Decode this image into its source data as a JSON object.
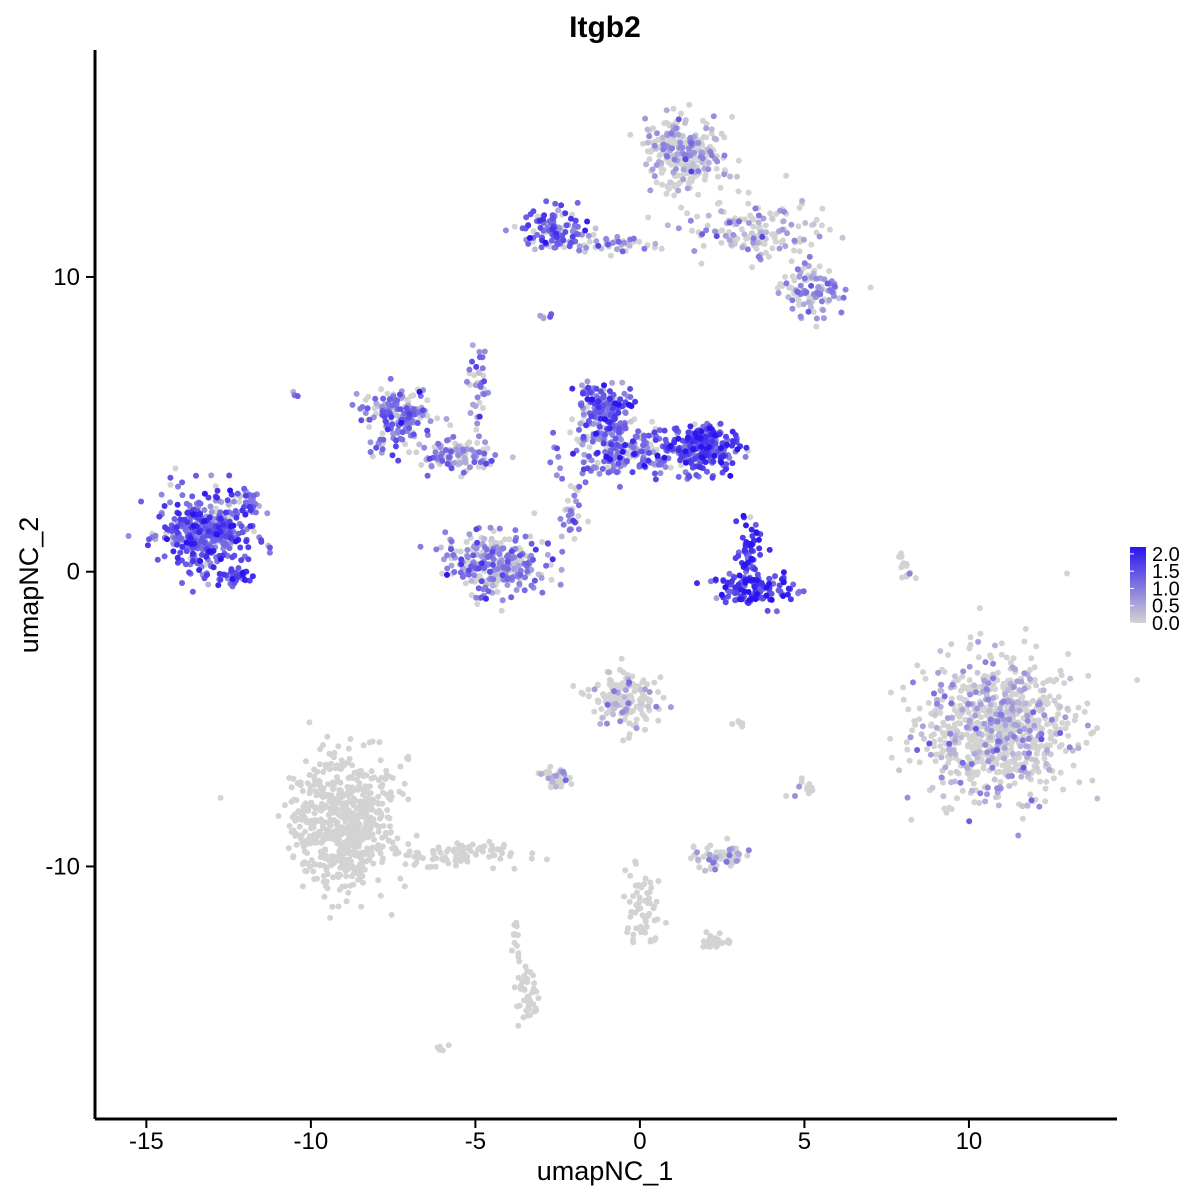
{
  "chart_data": {
    "type": "scatter",
    "title": "Itgb2",
    "xlabel": "umapNC_1",
    "ylabel": "umapNC_2",
    "xlim": [
      -16.5,
      14.5
    ],
    "ylim": [
      -18.5,
      17.7
    ],
    "x_ticks": [
      -15,
      -10,
      -5,
      0,
      5,
      10
    ],
    "y_ticks": [
      -10,
      0,
      10
    ],
    "x_tick_labels": [
      "-15",
      "-10",
      "-5",
      "0",
      "5",
      "10"
    ],
    "y_tick_labels": [
      "-10",
      "0",
      "10"
    ],
    "grid": false,
    "legend": {
      "placement": "right",
      "title": "",
      "values": [
        "2.0",
        "1.5",
        "1.0",
        "0.5",
        "0.0"
      ],
      "range": [
        0,
        2.2
      ],
      "low_color": "#d3d3d3",
      "high_color": "#2a14f0"
    },
    "clusters": [
      {
        "cx": -13.2,
        "cy": 1.3,
        "rx": 1.2,
        "ry": 1.1,
        "n": 420,
        "expr": 1.3
      },
      {
        "cx": -12.3,
        "cy": -0.1,
        "rx": 0.4,
        "ry": 0.2,
        "n": 40,
        "expr": 1.5
      },
      {
        "cx": -11.9,
        "cy": 2.3,
        "rx": 0.4,
        "ry": 0.4,
        "n": 25,
        "expr": 0.9
      },
      {
        "cx": -7.3,
        "cy": 5.2,
        "rx": 0.9,
        "ry": 0.9,
        "n": 180,
        "expr": 1.0
      },
      {
        "cx": -5.5,
        "cy": 3.9,
        "rx": 1.0,
        "ry": 0.4,
        "n": 110,
        "expr": 0.8
      },
      {
        "cx": -4.3,
        "cy": 0.2,
        "rx": 1.3,
        "ry": 0.9,
        "n": 300,
        "expr": 0.8
      },
      {
        "cx": -4.9,
        "cy": 6.3,
        "rx": 0.3,
        "ry": 1.2,
        "n": 35,
        "expr": 0.9
      },
      {
        "cx": -1.1,
        "cy": 5.6,
        "rx": 0.7,
        "ry": 0.7,
        "n": 170,
        "expr": 1.2
      },
      {
        "cx": -0.5,
        "cy": 4.1,
        "rx": 1.4,
        "ry": 0.7,
        "n": 220,
        "expr": 1.1
      },
      {
        "cx": 1.9,
        "cy": 4.2,
        "rx": 0.9,
        "ry": 0.7,
        "n": 230,
        "expr": 1.6
      },
      {
        "cx": -2.1,
        "cy": 2.2,
        "rx": 0.3,
        "ry": 1.0,
        "n": 30,
        "expr": 0.9
      },
      {
        "cx": -2.5,
        "cy": 11.6,
        "rx": 0.9,
        "ry": 0.6,
        "n": 120,
        "expr": 1.2
      },
      {
        "cx": -0.6,
        "cy": 11.1,
        "rx": 1.0,
        "ry": 0.3,
        "n": 40,
        "expr": 0.8
      },
      {
        "cx": 1.3,
        "cy": 14.2,
        "rx": 1.0,
        "ry": 1.0,
        "n": 280,
        "expr": 0.5
      },
      {
        "cx": 3.5,
        "cy": 11.6,
        "rx": 1.8,
        "ry": 0.8,
        "n": 150,
        "expr": 0.5
      },
      {
        "cx": 5.3,
        "cy": 9.5,
        "rx": 0.8,
        "ry": 0.7,
        "n": 110,
        "expr": 0.7
      },
      {
        "cx": 3.3,
        "cy": 0.7,
        "rx": 0.3,
        "ry": 0.8,
        "n": 60,
        "expr": 1.6
      },
      {
        "cx": 3.5,
        "cy": -0.6,
        "rx": 1.0,
        "ry": 0.4,
        "n": 130,
        "expr": 1.6
      },
      {
        "cx": 10.8,
        "cy": -5.2,
        "rx": 1.9,
        "ry": 2.0,
        "n": 850,
        "expr": 0.3
      },
      {
        "cx": 8.1,
        "cy": 0.2,
        "rx": 0.2,
        "ry": 0.4,
        "n": 15,
        "expr": 0.1
      },
      {
        "cx": -9.0,
        "cy": -8.5,
        "rx": 1.3,
        "ry": 1.8,
        "n": 650,
        "expr": 0.0
      },
      {
        "cx": -5.5,
        "cy": -9.6,
        "rx": 1.5,
        "ry": 0.4,
        "n": 90,
        "expr": 0.0
      },
      {
        "cx": -0.4,
        "cy": -4.3,
        "rx": 0.9,
        "ry": 0.8,
        "n": 150,
        "expr": 0.2
      },
      {
        "cx": -2.6,
        "cy": -6.9,
        "rx": 0.5,
        "ry": 0.3,
        "n": 40,
        "expr": 0.3
      },
      {
        "cx": 2.5,
        "cy": -9.7,
        "rx": 0.7,
        "ry": 0.3,
        "n": 70,
        "expr": 0.3
      },
      {
        "cx": 0.0,
        "cy": -11.5,
        "rx": 0.4,
        "ry": 1.2,
        "n": 60,
        "expr": 0.0
      },
      {
        "cx": 2.3,
        "cy": -12.6,
        "rx": 0.4,
        "ry": 0.3,
        "n": 30,
        "expr": 0.0
      },
      {
        "cx": -3.4,
        "cy": -14.5,
        "rx": 0.3,
        "ry": 0.9,
        "n": 45,
        "expr": 0.0
      },
      {
        "cx": 5.0,
        "cy": -7.3,
        "rx": 0.3,
        "ry": 0.3,
        "n": 12,
        "expr": 0.4
      },
      {
        "cx": 3.0,
        "cy": -5.1,
        "rx": 0.2,
        "ry": 0.1,
        "n": 6,
        "expr": 0.0
      },
      {
        "cx": -3.8,
        "cy": -12.2,
        "rx": 0.1,
        "ry": 0.6,
        "n": 12,
        "expr": 0.0
      },
      {
        "cx": -2.9,
        "cy": 8.7,
        "rx": 0.2,
        "ry": 0.1,
        "n": 5,
        "expr": 0.8
      },
      {
        "cx": -10.5,
        "cy": 6.0,
        "rx": 0.1,
        "ry": 0.1,
        "n": 3,
        "expr": 0.9
      },
      {
        "cx": -6.0,
        "cy": -16.2,
        "rx": 0.2,
        "ry": 0.1,
        "n": 5,
        "expr": 0.0
      }
    ]
  }
}
